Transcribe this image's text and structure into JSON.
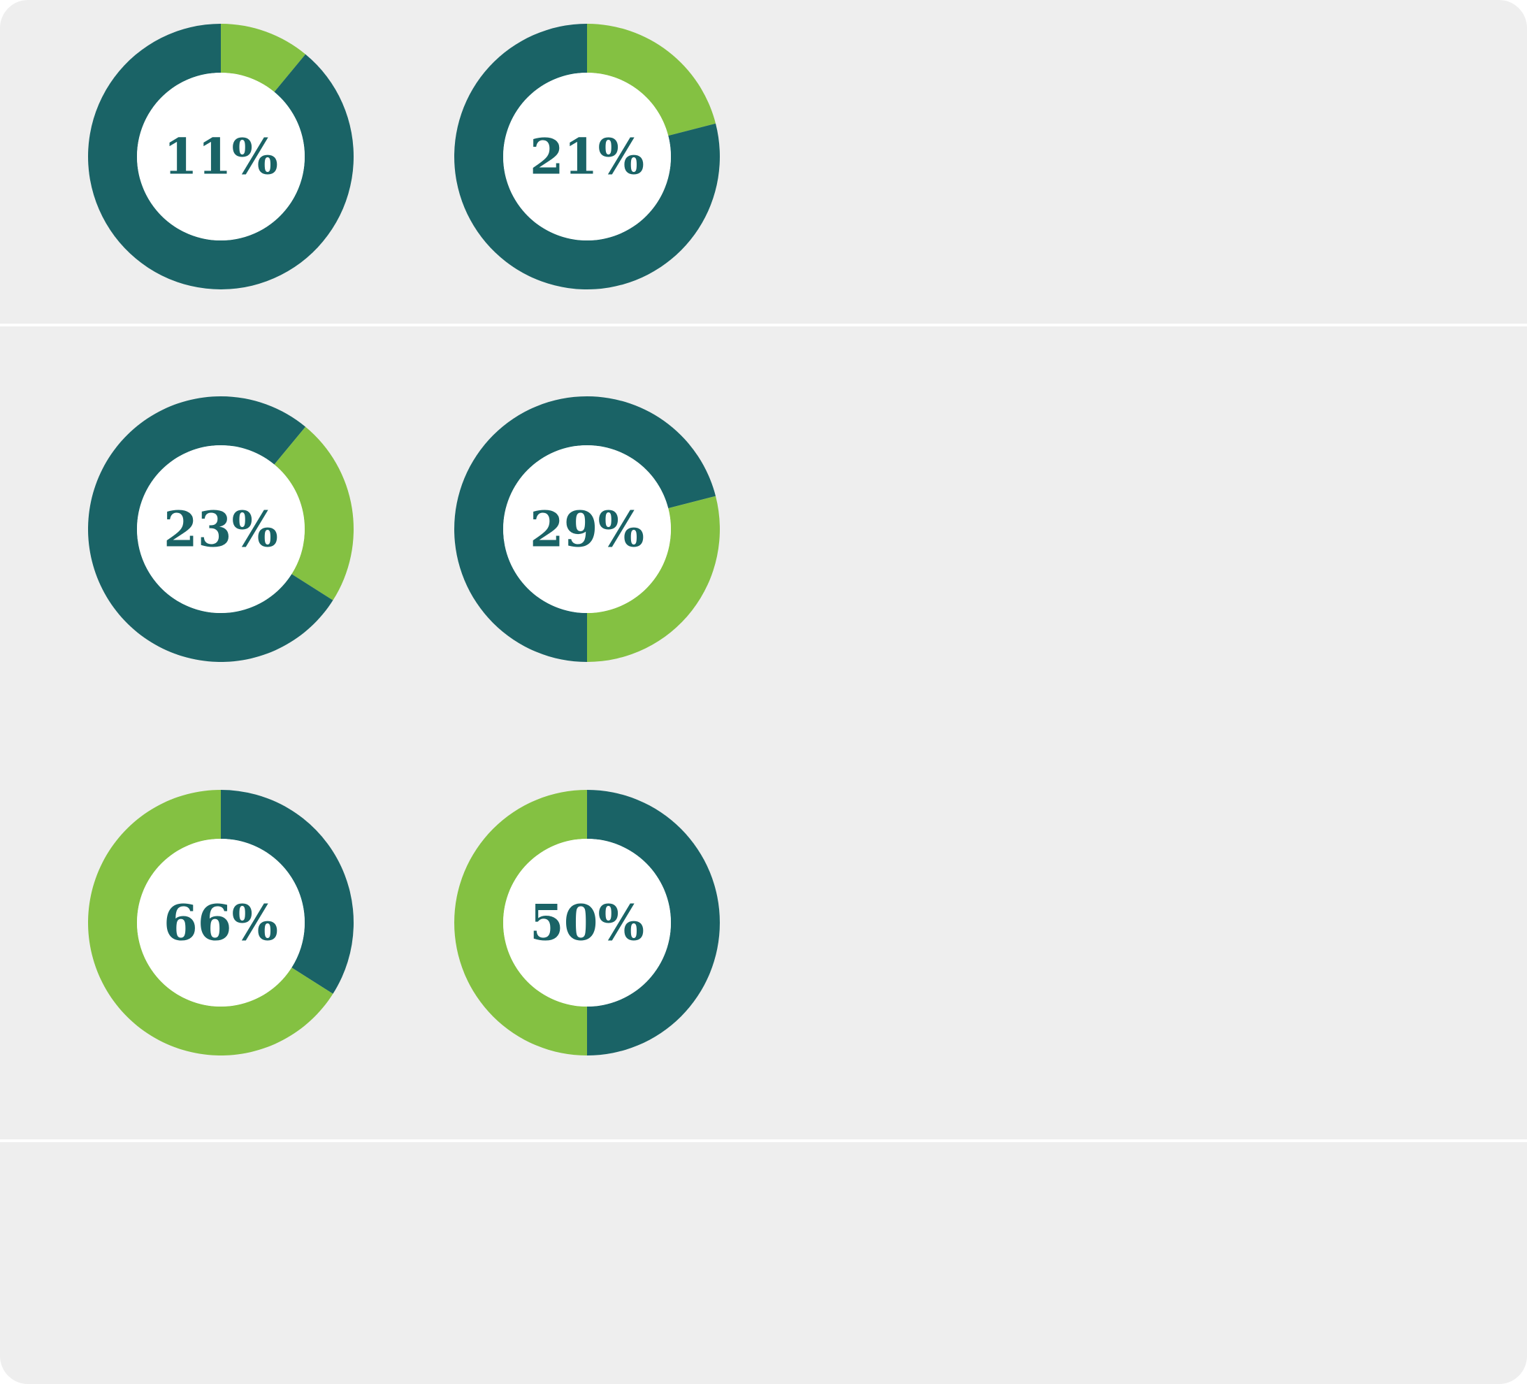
{
  "chart_data": [
    {
      "type": "donut",
      "values": [
        11,
        89
      ],
      "colors": [
        "#84c142",
        "#1a6366"
      ],
      "value_labels": [
        "11%",
        null
      ]
    },
    {
      "type": "donut",
      "values": [
        21,
        79
      ],
      "colors": [
        "#84c142",
        "#1a6366"
      ],
      "value_labels": [
        "21%",
        null
      ]
    },
    {
      "type": "donut",
      "values": [
        11,
        23,
        66
      ],
      "colors": [
        "#1a6366",
        "#84c142",
        "#1a6366"
      ],
      "value_labels": [
        null,
        "23%",
        null
      ]
    },
    {
      "type": "donut",
      "values": [
        21,
        29,
        50
      ],
      "colors": [
        "#1a6366",
        "#84c142",
        "#1a6366"
      ],
      "value_labels": [
        null,
        "29%",
        null
      ]
    },
    {
      "type": "donut",
      "values": [
        34,
        66
      ],
      "colors": [
        "#1a6366",
        "#84c142"
      ],
      "value_labels": [
        null,
        "66%"
      ]
    },
    {
      "type": "donut",
      "values": [
        50,
        50
      ],
      "colors": [
        "#1a6366",
        "#84c142"
      ],
      "value_labels": [
        null,
        "50%"
      ]
    }
  ]
}
